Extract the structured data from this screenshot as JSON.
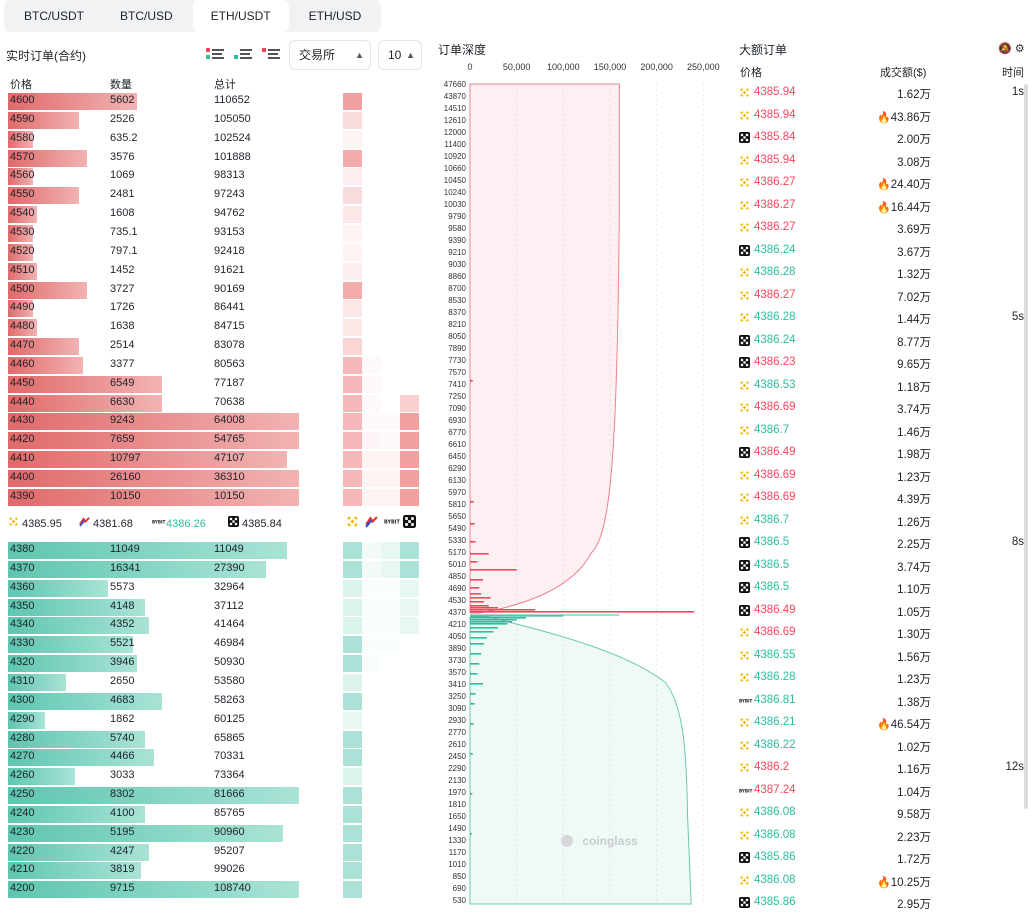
{
  "tabs": [
    "BTC/USDT",
    "BTC/USD",
    "ETH/USDT",
    "ETH/USD"
  ],
  "active_tab": 2,
  "left_panel": {
    "title": "实时订单(合约)",
    "exchange_select": "交易所",
    "depth_select": "10",
    "col_price": "价格",
    "col_qty": "数量",
    "col_total": "总计"
  },
  "asks": [
    {
      "price": "4600",
      "qty": "5602",
      "total": "110652",
      "bar": 0.31,
      "heat": [
        0.8,
        0,
        0,
        0
      ]
    },
    {
      "price": "4590",
      "qty": "2526",
      "total": "105050",
      "bar": 0.17,
      "heat": [
        0.3,
        0,
        0,
        0
      ]
    },
    {
      "price": "4580",
      "qty": "635.2",
      "total": "102524",
      "bar": 0.06,
      "heat": [
        0.1,
        0,
        0,
        0
      ]
    },
    {
      "price": "4570",
      "qty": "3576",
      "total": "101888",
      "bar": 0.19,
      "heat": [
        0.7,
        0,
        0,
        0
      ]
    },
    {
      "price": "4560",
      "qty": "1069",
      "total": "98313",
      "bar": 0.06,
      "heat": [
        0.15,
        0,
        0,
        0
      ]
    },
    {
      "price": "4550",
      "qty": "2481",
      "total": "97243",
      "bar": 0.17,
      "heat": [
        0.3,
        0,
        0,
        0
      ]
    },
    {
      "price": "4540",
      "qty": "1608",
      "total": "94762",
      "bar": 0.07,
      "heat": [
        0.2,
        0,
        0,
        0
      ]
    },
    {
      "price": "4530",
      "qty": "735.1",
      "total": "93153",
      "bar": 0.06,
      "heat": [
        0.1,
        0,
        0,
        0
      ]
    },
    {
      "price": "4520",
      "qty": "797.1",
      "total": "92418",
      "bar": 0.06,
      "heat": [
        0.1,
        0,
        0,
        0
      ]
    },
    {
      "price": "4510",
      "qty": "1452",
      "total": "91621",
      "bar": 0.07,
      "heat": [
        0.15,
        0,
        0,
        0
      ]
    },
    {
      "price": "4500",
      "qty": "3727",
      "total": "90169",
      "bar": 0.19,
      "heat": [
        0.7,
        0,
        0,
        0
      ]
    },
    {
      "price": "4490",
      "qty": "1726",
      "total": "86441",
      "bar": 0.06,
      "heat": [
        0.2,
        0,
        0,
        0
      ]
    },
    {
      "price": "4480",
      "qty": "1638",
      "total": "84715",
      "bar": 0.07,
      "heat": [
        0.2,
        0,
        0,
        0
      ]
    },
    {
      "price": "4470",
      "qty": "2514",
      "total": "83078",
      "bar": 0.17,
      "heat": [
        0.35,
        0,
        0,
        0
      ]
    },
    {
      "price": "4460",
      "qty": "3377",
      "total": "80563",
      "bar": 0.18,
      "heat": [
        0.6,
        0.05,
        0,
        0
      ]
    },
    {
      "price": "4450",
      "qty": "6549",
      "total": "77187",
      "bar": 0.37,
      "heat": [
        0.6,
        0.05,
        0,
        0
      ]
    },
    {
      "price": "4440",
      "qty": "6630",
      "total": "70638",
      "bar": 0.37,
      "heat": [
        0.6,
        0.05,
        0,
        0.4
      ]
    },
    {
      "price": "4430",
      "qty": "9243",
      "total": "64008",
      "bar": 0.7,
      "heat": [
        0.6,
        0.05,
        0.05,
        0.8
      ]
    },
    {
      "price": "4420",
      "qty": "7659",
      "total": "54765",
      "bar": 0.7,
      "heat": [
        0.6,
        0.08,
        0.05,
        0.8
      ]
    },
    {
      "price": "4410",
      "qty": "10797",
      "total": "47107",
      "bar": 0.67,
      "heat": [
        0.6,
        0.1,
        0.1,
        0.8
      ]
    },
    {
      "price": "4400",
      "qty": "26160",
      "total": "36310",
      "bar": 0.7,
      "heat": [
        0.6,
        0.1,
        0.1,
        0.8
      ]
    },
    {
      "price": "4390",
      "qty": "10150",
      "total": "10150",
      "bar": 0.7,
      "heat": [
        0.6,
        0.1,
        0.1,
        0.8
      ]
    }
  ],
  "mid_prices": [
    {
      "exchange": "binance",
      "price": "4385.95"
    },
    {
      "exchange": "bitmex",
      "price": "4381.68"
    },
    {
      "exchange": "bybit",
      "price": "4386.26"
    },
    {
      "exchange": "okx",
      "price": "4385.84"
    }
  ],
  "bids": [
    {
      "price": "4380",
      "qty": "11049",
      "total": "11049",
      "bar": 0.67,
      "heat": [
        0.7,
        0.1,
        0.2,
        0.7
      ]
    },
    {
      "price": "4370",
      "qty": "16341",
      "total": "27390",
      "bar": 0.62,
      "heat": [
        0.7,
        0.1,
        0.2,
        0.7
      ]
    },
    {
      "price": "4360",
      "qty": "5573",
      "total": "32964",
      "bar": 0.24,
      "heat": [
        0.3,
        0.05,
        0.05,
        0.2
      ]
    },
    {
      "price": "4350",
      "qty": "4148",
      "total": "37112",
      "bar": 0.33,
      "heat": [
        0.3,
        0.05,
        0.05,
        0.2
      ]
    },
    {
      "price": "4340",
      "qty": "4352",
      "total": "41464",
      "bar": 0.34,
      "heat": [
        0.3,
        0.05,
        0.05,
        0.2
      ]
    },
    {
      "price": "4330",
      "qty": "5521",
      "total": "46984",
      "bar": 0.3,
      "heat": [
        0.7,
        0.05,
        0.05,
        0
      ]
    },
    {
      "price": "4320",
      "qty": "3946",
      "total": "50930",
      "bar": 0.31,
      "heat": [
        0.7,
        0.05,
        0,
        0
      ]
    },
    {
      "price": "4310",
      "qty": "2650",
      "total": "53580",
      "bar": 0.14,
      "heat": [
        0.3,
        0,
        0,
        0
      ]
    },
    {
      "price": "4300",
      "qty": "4683",
      "total": "58263",
      "bar": 0.37,
      "heat": [
        0.7,
        0,
        0,
        0
      ]
    },
    {
      "price": "4290",
      "qty": "1862",
      "total": "60125",
      "bar": 0.09,
      "heat": [
        0.2,
        0,
        0,
        0
      ]
    },
    {
      "price": "4280",
      "qty": "5740",
      "total": "65865",
      "bar": 0.33,
      "heat": [
        0.7,
        0,
        0,
        0
      ]
    },
    {
      "price": "4270",
      "qty": "4466",
      "total": "70331",
      "bar": 0.35,
      "heat": [
        0.7,
        0,
        0,
        0
      ]
    },
    {
      "price": "4260",
      "qty": "3033",
      "total": "73364",
      "bar": 0.16,
      "heat": [
        0.3,
        0,
        0,
        0
      ]
    },
    {
      "price": "4250",
      "qty": "8302",
      "total": "81666",
      "bar": 0.7,
      "heat": [
        0.7,
        0,
        0,
        0
      ]
    },
    {
      "price": "4240",
      "qty": "4100",
      "total": "85765",
      "bar": 0.33,
      "heat": [
        0.7,
        0,
        0,
        0
      ]
    },
    {
      "price": "4230",
      "qty": "5195",
      "total": "90960",
      "bar": 0.66,
      "heat": [
        0.7,
        0,
        0,
        0
      ]
    },
    {
      "price": "4220",
      "qty": "4247",
      "total": "95207",
      "bar": 0.34,
      "heat": [
        0.7,
        0,
        0,
        0
      ]
    },
    {
      "price": "4210",
      "qty": "3819",
      "total": "99026",
      "bar": 0.32,
      "heat": [
        0.7,
        0,
        0,
        0
      ]
    },
    {
      "price": "4200",
      "qty": "9715",
      "total": "108740",
      "bar": 0.7,
      "heat": [
        0.7,
        0,
        0,
        0
      ]
    }
  ],
  "depth": {
    "title": "订单深度",
    "x_ticks": [
      "0",
      "50,000",
      "100,000",
      "150,000",
      "200,000",
      "250,000"
    ],
    "y_ticks": [
      "47660",
      "43870",
      "14510",
      "12610",
      "12000",
      "11400",
      "10920",
      "10660",
      "10450",
      "10240",
      "10030",
      "9790",
      "9580",
      "9390",
      "9210",
      "9030",
      "8860",
      "8700",
      "8530",
      "8370",
      "8210",
      "8050",
      "7890",
      "7730",
      "7570",
      "7410",
      "7250",
      "7090",
      "6930",
      "6770",
      "6610",
      "6450",
      "6290",
      "6130",
      "5970",
      "5810",
      "5650",
      "5490",
      "5330",
      "5170",
      "5010",
      "4850",
      "4690",
      "4530",
      "4370",
      "4210",
      "4050",
      "3890",
      "3730",
      "3570",
      "3410",
      "3250",
      "3090",
      "2930",
      "2770",
      "2610",
      "2450",
      "2290",
      "2130",
      "1970",
      "1810",
      "1650",
      "1490",
      "1330",
      "1170",
      "1010",
      "850",
      "690",
      "530"
    ],
    "watermark": "coinglass"
  },
  "big_orders": {
    "title": "大额订单",
    "col_price": "价格",
    "col_amount": "成交额($)",
    "col_time": "时间",
    "rows": [
      {
        "ex": "binance",
        "price": "4385.94",
        "side": "dn",
        "amount": "1.62万",
        "fire": false,
        "time": "1s"
      },
      {
        "ex": "binance",
        "price": "4385.94",
        "side": "dn",
        "amount": "43.86万",
        "fire": true,
        "time": ""
      },
      {
        "ex": "okx",
        "price": "4385.84",
        "side": "dn",
        "amount": "2.00万",
        "fire": false,
        "time": ""
      },
      {
        "ex": "binance",
        "price": "4385.94",
        "side": "dn",
        "amount": "3.08万",
        "fire": false,
        "time": ""
      },
      {
        "ex": "binance",
        "price": "4386.27",
        "side": "dn",
        "amount": "24.40万",
        "fire": true,
        "time": ""
      },
      {
        "ex": "binance",
        "price": "4386.27",
        "side": "dn",
        "amount": "16.44万",
        "fire": true,
        "time": ""
      },
      {
        "ex": "binance",
        "price": "4386.27",
        "side": "dn",
        "amount": "3.69万",
        "fire": false,
        "time": ""
      },
      {
        "ex": "okx",
        "price": "4386.24",
        "side": "up",
        "amount": "3.67万",
        "fire": false,
        "time": ""
      },
      {
        "ex": "binance",
        "price": "4386.28",
        "side": "up",
        "amount": "1.32万",
        "fire": false,
        "time": ""
      },
      {
        "ex": "binance",
        "price": "4386.27",
        "side": "dn",
        "amount": "7.02万",
        "fire": false,
        "time": ""
      },
      {
        "ex": "binance",
        "price": "4386.28",
        "side": "up",
        "amount": "1.44万",
        "fire": false,
        "time": "5s"
      },
      {
        "ex": "okx",
        "price": "4386.24",
        "side": "up",
        "amount": "8.77万",
        "fire": false,
        "time": ""
      },
      {
        "ex": "okx",
        "price": "4386.23",
        "side": "dn",
        "amount": "9.65万",
        "fire": false,
        "time": ""
      },
      {
        "ex": "binance",
        "price": "4386.53",
        "side": "up",
        "amount": "1.18万",
        "fire": false,
        "time": ""
      },
      {
        "ex": "binance",
        "price": "4386.69",
        "side": "dn",
        "amount": "3.74万",
        "fire": false,
        "time": ""
      },
      {
        "ex": "binance",
        "price": "4386.7",
        "side": "up",
        "amount": "1.46万",
        "fire": false,
        "time": ""
      },
      {
        "ex": "okx",
        "price": "4386.49",
        "side": "dn",
        "amount": "1.98万",
        "fire": false,
        "time": ""
      },
      {
        "ex": "binance",
        "price": "4386.69",
        "side": "dn",
        "amount": "1.23万",
        "fire": false,
        "time": ""
      },
      {
        "ex": "binance",
        "price": "4386.69",
        "side": "dn",
        "amount": "4.39万",
        "fire": false,
        "time": ""
      },
      {
        "ex": "binance",
        "price": "4386.7",
        "side": "up",
        "amount": "1.26万",
        "fire": false,
        "time": ""
      },
      {
        "ex": "okx",
        "price": "4386.5",
        "side": "up",
        "amount": "2.25万",
        "fire": false,
        "time": "8s"
      },
      {
        "ex": "okx",
        "price": "4386.5",
        "side": "up",
        "amount": "3.74万",
        "fire": false,
        "time": ""
      },
      {
        "ex": "okx",
        "price": "4386.5",
        "side": "up",
        "amount": "1.10万",
        "fire": false,
        "time": ""
      },
      {
        "ex": "okx",
        "price": "4386.49",
        "side": "dn",
        "amount": "1.05万",
        "fire": false,
        "time": ""
      },
      {
        "ex": "binance",
        "price": "4386.69",
        "side": "dn",
        "amount": "1.30万",
        "fire": false,
        "time": ""
      },
      {
        "ex": "binance",
        "price": "4386.55",
        "side": "up",
        "amount": "1.56万",
        "fire": false,
        "time": ""
      },
      {
        "ex": "binance",
        "price": "4386.28",
        "side": "up",
        "amount": "1.23万",
        "fire": false,
        "time": ""
      },
      {
        "ex": "bybit",
        "price": "4386.81",
        "side": "up",
        "amount": "1.38万",
        "fire": false,
        "time": ""
      },
      {
        "ex": "binance",
        "price": "4386.21",
        "side": "up",
        "amount": "46.54万",
        "fire": true,
        "time": ""
      },
      {
        "ex": "binance",
        "price": "4386.22",
        "side": "up",
        "amount": "1.02万",
        "fire": false,
        "time": ""
      },
      {
        "ex": "binance",
        "price": "4386.2",
        "side": "dn",
        "amount": "1.16万",
        "fire": false,
        "time": "12s"
      },
      {
        "ex": "bybit",
        "price": "4387.24",
        "side": "dn",
        "amount": "1.04万",
        "fire": false,
        "time": ""
      },
      {
        "ex": "binance",
        "price": "4386.08",
        "side": "up",
        "amount": "9.58万",
        "fire": false,
        "time": ""
      },
      {
        "ex": "binance",
        "price": "4386.08",
        "side": "up",
        "amount": "2.23万",
        "fire": false,
        "time": ""
      },
      {
        "ex": "okx",
        "price": "4385.86",
        "side": "up",
        "amount": "1.72万",
        "fire": false,
        "time": ""
      },
      {
        "ex": "binance",
        "price": "4386.08",
        "side": "up",
        "amount": "10.25万",
        "fire": true,
        "time": ""
      },
      {
        "ex": "okx",
        "price": "4385.86",
        "side": "up",
        "amount": "2.95万",
        "fire": false,
        "time": ""
      }
    ]
  },
  "colors": {
    "up": "#2ebd9e",
    "down": "#f6465d",
    "binance": "#f0b90b"
  }
}
